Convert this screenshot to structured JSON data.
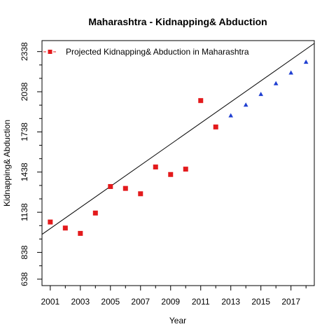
{
  "chart_data": {
    "type": "scatter",
    "title": "Maharashtra  -  Kidnapping& Abduction",
    "xlabel": "Year",
    "ylabel": "Kidnapping& Abduction",
    "xlim": [
      2000.45,
      2018.55
    ],
    "ylim": [
      590,
      2420
    ],
    "x_ticks": [
      2001,
      2003,
      2005,
      2007,
      2009,
      2011,
      2013,
      2015,
      2017
    ],
    "x_minor_ticks": [
      2002,
      2004,
      2006,
      2008,
      2010,
      2012,
      2014,
      2016,
      2018
    ],
    "y_ticks": [
      638,
      838,
      1138,
      1438,
      1738,
      2038,
      2338
    ],
    "y_minor_ticks": [
      738,
      938,
      1038,
      1238,
      1338,
      1538,
      1638,
      1838,
      1938,
      2138,
      2238
    ],
    "legend": {
      "label": "Projected  Kidnapping& Abduction  in  Maharashtra",
      "position": "top-left"
    },
    "series": [
      {
        "kind": "actual",
        "marker": "square",
        "color": "#e31a1c",
        "x": [
          2001,
          2002,
          2003,
          2004,
          2005,
          2006,
          2007,
          2008,
          2009,
          2010,
          2011,
          2012
        ],
        "y": [
          1065,
          1020,
          980,
          1132,
          1330,
          1316,
          1276,
          1476,
          1420,
          1460,
          1972,
          1775
        ]
      },
      {
        "kind": "projected",
        "marker": "triangle",
        "color": "#1f3fd1",
        "x": [
          2013,
          2014,
          2015,
          2016,
          2017,
          2018
        ],
        "y": [
          1858,
          1938,
          2018,
          2098,
          2178,
          2258
        ]
      }
    ],
    "trend_line": {
      "slope": 78.8,
      "intercept_at_2001": 1016,
      "color": "#000000"
    }
  }
}
